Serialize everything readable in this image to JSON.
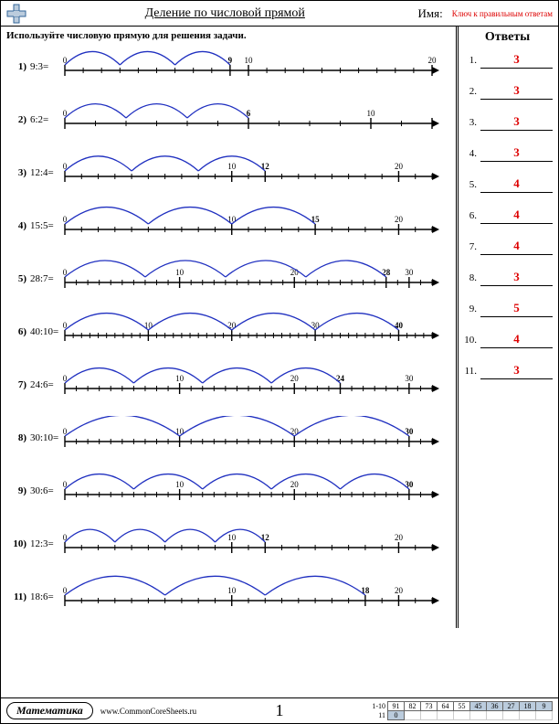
{
  "header": {
    "title": "Деление по числовой прямой",
    "name_label": "Имя:",
    "key_label": "Ключ к правильным ответам"
  },
  "instruction": "Используйте числовую прямую для решения задачи.",
  "answers_title": "Ответы",
  "line_color": "#2030c0",
  "problems": [
    {
      "n": "1)",
      "expr": "9:3=",
      "max": 20,
      "ticks_per_major": 1,
      "majors": [
        0,
        9,
        10,
        20
      ],
      "labels": [
        {
          "v": 0,
          "t": "0"
        },
        {
          "v": 9,
          "t": "9"
        },
        {
          "v": 10,
          "t": "10"
        },
        {
          "v": 20,
          "t": "20"
        }
      ],
      "arcs": 3,
      "arc_span": 3
    },
    {
      "n": "2)",
      "expr": "6:2=",
      "max": 12,
      "ticks_per_major": 1,
      "majors": [
        0,
        6,
        10,
        12
      ],
      "labels": [
        {
          "v": 0,
          "t": "0"
        },
        {
          "v": 6,
          "t": "6"
        },
        {
          "v": 10,
          "t": "10"
        }
      ],
      "arcs": 3,
      "arc_span": 2
    },
    {
      "n": "3)",
      "expr": "12:4=",
      "max": 22,
      "ticks_per_major": 1,
      "majors": [
        0,
        10,
        12,
        20
      ],
      "labels": [
        {
          "v": 0,
          "t": "0"
        },
        {
          "v": 10,
          "t": "10"
        },
        {
          "v": 12,
          "t": "12"
        },
        {
          "v": 20,
          "t": "20"
        }
      ],
      "arcs": 3,
      "arc_span": 4
    },
    {
      "n": "4)",
      "expr": "15:5=",
      "max": 22,
      "ticks_per_major": 1,
      "majors": [
        0,
        10,
        15,
        20
      ],
      "labels": [
        {
          "v": 0,
          "t": "0"
        },
        {
          "v": 10,
          "t": "10"
        },
        {
          "v": 15,
          "t": "15"
        },
        {
          "v": 20,
          "t": "20"
        }
      ],
      "arcs": 3,
      "arc_span": 5
    },
    {
      "n": "5)",
      "expr": "28:7=",
      "max": 32,
      "ticks_per_major": 1,
      "majors": [
        0,
        10,
        20,
        28,
        30
      ],
      "labels": [
        {
          "v": 0,
          "t": "0"
        },
        {
          "v": 10,
          "t": "10"
        },
        {
          "v": 20,
          "t": "20"
        },
        {
          "v": 28,
          "t": "28"
        },
        {
          "v": 30,
          "t": "30"
        }
      ],
      "arcs": 4,
      "arc_span": 7
    },
    {
      "n": "6)",
      "expr": "40:10=",
      "max": 44,
      "ticks_per_major": 1,
      "majors": [
        0,
        10,
        20,
        30,
        40
      ],
      "labels": [
        {
          "v": 0,
          "t": "0"
        },
        {
          "v": 10,
          "t": "10"
        },
        {
          "v": 20,
          "t": "20"
        },
        {
          "v": 30,
          "t": "30"
        },
        {
          "v": 40,
          "t": "40"
        }
      ],
      "arcs": 4,
      "arc_span": 10
    },
    {
      "n": "7)",
      "expr": "24:6=",
      "max": 32,
      "ticks_per_major": 1,
      "majors": [
        0,
        10,
        20,
        24,
        30
      ],
      "labels": [
        {
          "v": 0,
          "t": "0"
        },
        {
          "v": 10,
          "t": "10"
        },
        {
          "v": 20,
          "t": "20"
        },
        {
          "v": 24,
          "t": "24"
        },
        {
          "v": 30,
          "t": "30"
        }
      ],
      "arcs": 4,
      "arc_span": 6
    },
    {
      "n": "8)",
      "expr": "30:10=",
      "max": 32,
      "ticks_per_major": 1,
      "majors": [
        0,
        10,
        20,
        30
      ],
      "labels": [
        {
          "v": 0,
          "t": "0"
        },
        {
          "v": 10,
          "t": "10"
        },
        {
          "v": 20,
          "t": "20"
        },
        {
          "v": 30,
          "t": "30"
        }
      ],
      "arcs": 3,
      "arc_span": 10
    },
    {
      "n": "9)",
      "expr": "30:6=",
      "max": 32,
      "ticks_per_major": 1,
      "majors": [
        0,
        10,
        20,
        30
      ],
      "labels": [
        {
          "v": 0,
          "t": "0"
        },
        {
          "v": 10,
          "t": "10"
        },
        {
          "v": 20,
          "t": "20"
        },
        {
          "v": 30,
          "t": "30"
        }
      ],
      "arcs": 5,
      "arc_span": 6
    },
    {
      "n": "10)",
      "expr": "12:3=",
      "max": 22,
      "ticks_per_major": 1,
      "majors": [
        0,
        10,
        12,
        20
      ],
      "labels": [
        {
          "v": 0,
          "t": "0"
        },
        {
          "v": 10,
          "t": "10"
        },
        {
          "v": 12,
          "t": "12"
        },
        {
          "v": 20,
          "t": "20"
        }
      ],
      "arcs": 4,
      "arc_span": 3
    },
    {
      "n": "11)",
      "expr": "18:6=",
      "max": 22,
      "ticks_per_major": 1,
      "majors": [
        0,
        10,
        18,
        20
      ],
      "labels": [
        {
          "v": 0,
          "t": "0"
        },
        {
          "v": 10,
          "t": "10"
        },
        {
          "v": 18,
          "t": "18"
        },
        {
          "v": 20,
          "t": "20"
        }
      ],
      "arcs": 3,
      "arc_span": 6
    }
  ],
  "answers": [
    {
      "n": "1.",
      "v": "3"
    },
    {
      "n": "2.",
      "v": "3"
    },
    {
      "n": "3.",
      "v": "3"
    },
    {
      "n": "4.",
      "v": "3"
    },
    {
      "n": "5.",
      "v": "4"
    },
    {
      "n": "6.",
      "v": "4"
    },
    {
      "n": "7.",
      "v": "4"
    },
    {
      "n": "8.",
      "v": "3"
    },
    {
      "n": "9.",
      "v": "5"
    },
    {
      "n": "10.",
      "v": "4"
    },
    {
      "n": "11.",
      "v": "3"
    }
  ],
  "footer": {
    "subject": "Математика",
    "site": "www.CommonCoreSheets.ru",
    "page": "1",
    "score_labels": [
      "1-10",
      "11"
    ],
    "score_row1": [
      "91",
      "82",
      "73",
      "64",
      "55",
      "45",
      "36",
      "27",
      "18",
      "9"
    ],
    "score_row2": [
      "0",
      "",
      "",
      "",
      "",
      "",
      "",
      "",
      "",
      ""
    ],
    "shade_from": 5
  }
}
